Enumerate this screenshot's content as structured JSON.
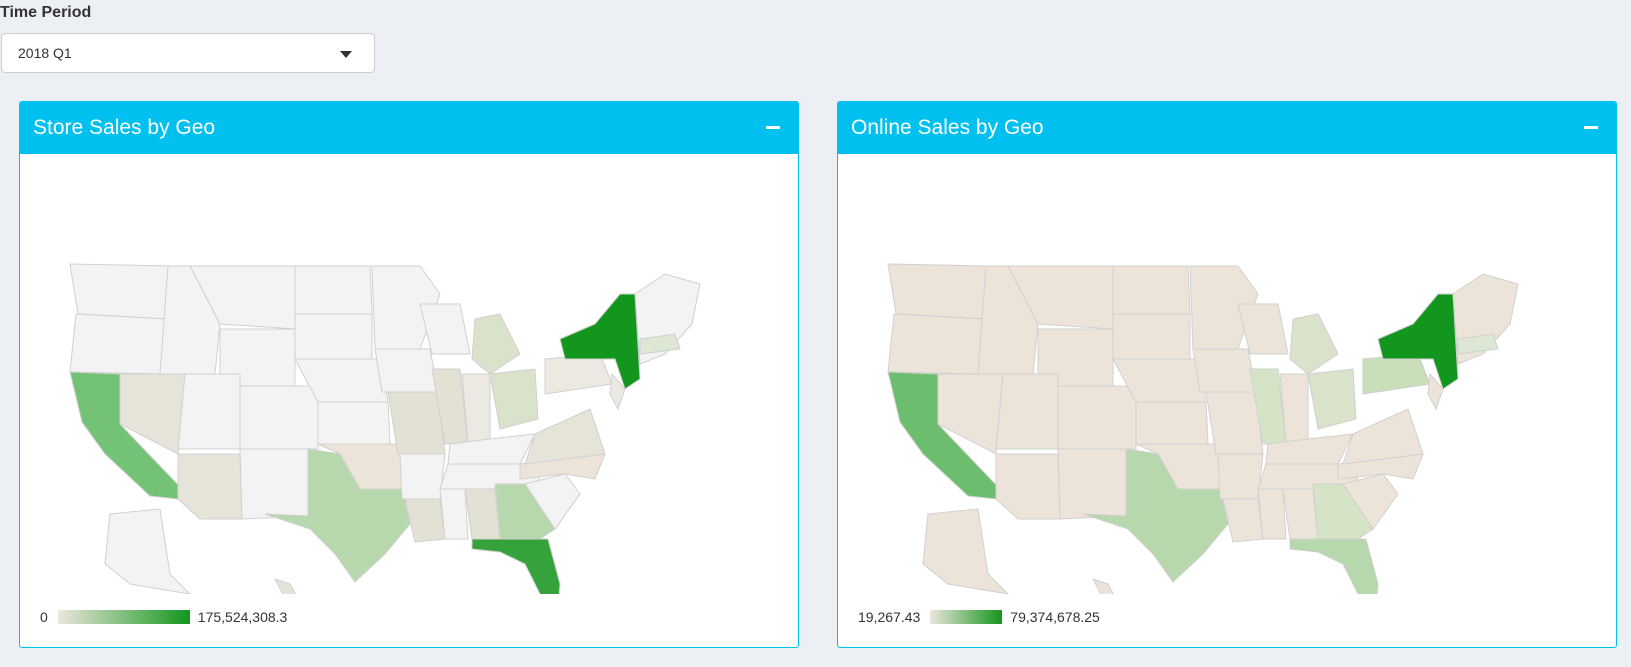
{
  "filter": {
    "label": "Time Period",
    "selected": "2018 Q1"
  },
  "panels": [
    {
      "title": "Store Sales by Geo",
      "collapse_icon": "minus-icon",
      "legend": {
        "min": "0",
        "max": "175,524,308.3"
      }
    },
    {
      "title": "Online Sales by Geo",
      "collapse_icon": "minus-icon",
      "legend": {
        "min": "19,267.43",
        "max": "79,374,678.25"
      }
    }
  ],
  "colors": {
    "header": "#00c0ef",
    "page_bg": "#ecf0f5",
    "scale_low": "#ece6dc",
    "scale_high": "#13961d"
  }
}
